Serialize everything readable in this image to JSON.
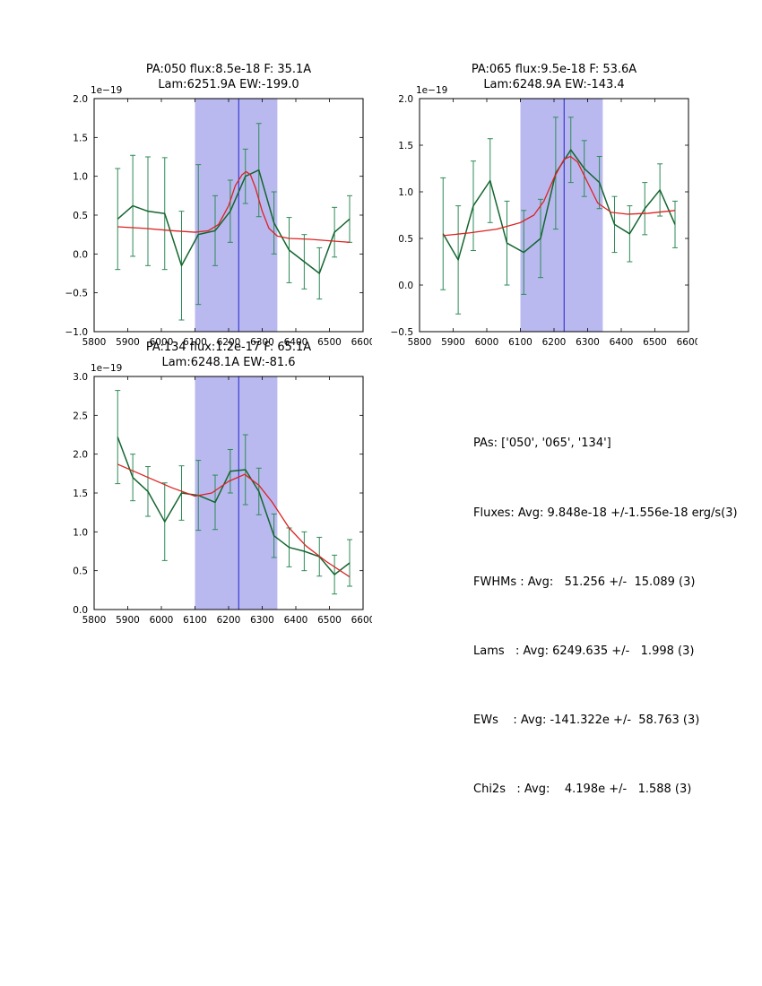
{
  "figure": {
    "background": "#ffffff",
    "frame_color": "#000000",
    "band_color": "#b9b9f0",
    "vline_color": "#2222cc",
    "data_color": "#14652f",
    "err_color": "#2e8b57",
    "fit_color": "#dd2222"
  },
  "chart_data": [
    {
      "type": "line",
      "id": "pa050",
      "title_line1": "PA:050 flux:8.5e-18 F: 35.1A",
      "title_line2": "Lam:6251.9A EW:-199.0",
      "y_offset_label": "1e−19",
      "xlabel": "",
      "ylabel": "",
      "xlim": [
        5800,
        6600
      ],
      "ylim": [
        -1.0,
        2.0
      ],
      "xticks": [
        5800,
        5900,
        6000,
        6100,
        6200,
        6300,
        6400,
        6500,
        6600
      ],
      "yticks": [
        -1.0,
        -0.5,
        0.0,
        0.5,
        1.0,
        1.5,
        2.0
      ],
      "band": {
        "x0": 6100,
        "x1": 6345
      },
      "vline": {
        "x": 6230
      },
      "series": [
        {
          "name": "data",
          "x": [
            5870,
            5915,
            5960,
            6010,
            6060,
            6110,
            6160,
            6205,
            6250,
            6290,
            6335,
            6380,
            6425,
            6470,
            6515,
            6560
          ],
          "y": [
            0.45,
            0.62,
            0.55,
            0.52,
            -0.15,
            0.25,
            0.3,
            0.55,
            1.0,
            1.08,
            0.4,
            0.05,
            -0.1,
            -0.25,
            0.28,
            0.45
          ],
          "yerr": [
            0.65,
            0.65,
            0.7,
            0.72,
            0.7,
            0.9,
            0.45,
            0.4,
            0.35,
            0.6,
            0.4,
            0.42,
            0.35,
            0.33,
            0.32,
            0.3
          ]
        },
        {
          "name": "fit",
          "x": [
            5870,
            5950,
            6030,
            6100,
            6140,
            6170,
            6200,
            6220,
            6240,
            6252,
            6265,
            6280,
            6300,
            6320,
            6345,
            6380,
            6440,
            6500,
            6560
          ],
          "y": [
            0.35,
            0.33,
            0.3,
            0.28,
            0.3,
            0.38,
            0.62,
            0.88,
            1.02,
            1.06,
            1.02,
            0.85,
            0.55,
            0.33,
            0.23,
            0.2,
            0.19,
            0.17,
            0.15
          ]
        }
      ]
    },
    {
      "type": "line",
      "id": "pa065",
      "title_line1": "PA:065 flux:9.5e-18 F: 53.6A",
      "title_line2": "Lam:6248.9A EW:-143.4",
      "y_offset_label": "1e−19",
      "xlabel": "",
      "ylabel": "",
      "xlim": [
        5800,
        6600
      ],
      "ylim": [
        -0.5,
        2.0
      ],
      "xticks": [
        5800,
        5900,
        6000,
        6100,
        6200,
        6300,
        6400,
        6500,
        6600
      ],
      "yticks": [
        -0.5,
        0.0,
        0.5,
        1.0,
        1.5,
        2.0
      ],
      "band": {
        "x0": 6100,
        "x1": 6345
      },
      "vline": {
        "x": 6230
      },
      "series": [
        {
          "name": "data",
          "x": [
            5870,
            5915,
            5960,
            6010,
            6060,
            6110,
            6160,
            6205,
            6250,
            6290,
            6335,
            6380,
            6425,
            6470,
            6515,
            6560
          ],
          "y": [
            0.55,
            0.27,
            0.85,
            1.12,
            0.45,
            0.35,
            0.5,
            1.2,
            1.45,
            1.25,
            1.1,
            0.65,
            0.55,
            0.82,
            1.02,
            0.65
          ],
          "yerr": [
            0.6,
            0.58,
            0.48,
            0.45,
            0.45,
            0.45,
            0.42,
            0.6,
            0.35,
            0.3,
            0.28,
            0.3,
            0.3,
            0.28,
            0.28,
            0.25
          ]
        },
        {
          "name": "fit",
          "x": [
            5870,
            5950,
            6030,
            6100,
            6140,
            6170,
            6200,
            6230,
            6249,
            6270,
            6300,
            6330,
            6370,
            6420,
            6480,
            6560
          ],
          "y": [
            0.53,
            0.56,
            0.6,
            0.67,
            0.75,
            0.9,
            1.15,
            1.35,
            1.38,
            1.32,
            1.1,
            0.88,
            0.78,
            0.76,
            0.77,
            0.8
          ]
        }
      ]
    },
    {
      "type": "line",
      "id": "pa134",
      "title_line1": "PA:134 flux:1.2e-17 F: 65.1A",
      "title_line2": "Lam:6248.1A EW:-81.6",
      "y_offset_label": "1e−19",
      "xlabel": "",
      "ylabel": "",
      "xlim": [
        5800,
        6600
      ],
      "ylim": [
        0.0,
        3.0
      ],
      "xticks": [
        5800,
        5900,
        6000,
        6100,
        6200,
        6300,
        6400,
        6500,
        6600
      ],
      "yticks": [
        0.0,
        0.5,
        1.0,
        1.5,
        2.0,
        2.5,
        3.0
      ],
      "band": {
        "x0": 6100,
        "x1": 6345
      },
      "vline": {
        "x": 6230
      },
      "series": [
        {
          "name": "data",
          "x": [
            5870,
            5915,
            5960,
            6010,
            6060,
            6110,
            6160,
            6205,
            6250,
            6290,
            6335,
            6380,
            6425,
            6470,
            6515,
            6560
          ],
          "y": [
            2.22,
            1.7,
            1.52,
            1.13,
            1.5,
            1.47,
            1.38,
            1.78,
            1.8,
            1.52,
            0.95,
            0.8,
            0.75,
            0.68,
            0.45,
            0.6
          ],
          "yerr": [
            0.6,
            0.3,
            0.32,
            0.5,
            0.35,
            0.45,
            0.35,
            0.28,
            0.45,
            0.3,
            0.28,
            0.25,
            0.25,
            0.25,
            0.25,
            0.3
          ]
        },
        {
          "name": "fit",
          "x": [
            5870,
            5950,
            6030,
            6100,
            6150,
            6200,
            6248,
            6290,
            6330,
            6380,
            6430,
            6490,
            6560
          ],
          "y": [
            1.87,
            1.72,
            1.57,
            1.46,
            1.5,
            1.65,
            1.74,
            1.6,
            1.38,
            1.05,
            0.82,
            0.62,
            0.42
          ]
        }
      ]
    }
  ],
  "summary": {
    "lines": [
      "PAs: ['050', '065', '134']",
      "Fluxes: Avg: 9.848e-18 +/-1.556e-18 erg/s(3)",
      "FWHMs : Avg:   51.256 +/-  15.089 (3)",
      "Lams   : Avg: 6249.635 +/-   1.998 (3)",
      "EWs    : Avg: -141.322e +/-  58.763 (3)",
      "Chi2s   : Avg:    4.198e +/-   1.588 (3)"
    ]
  }
}
